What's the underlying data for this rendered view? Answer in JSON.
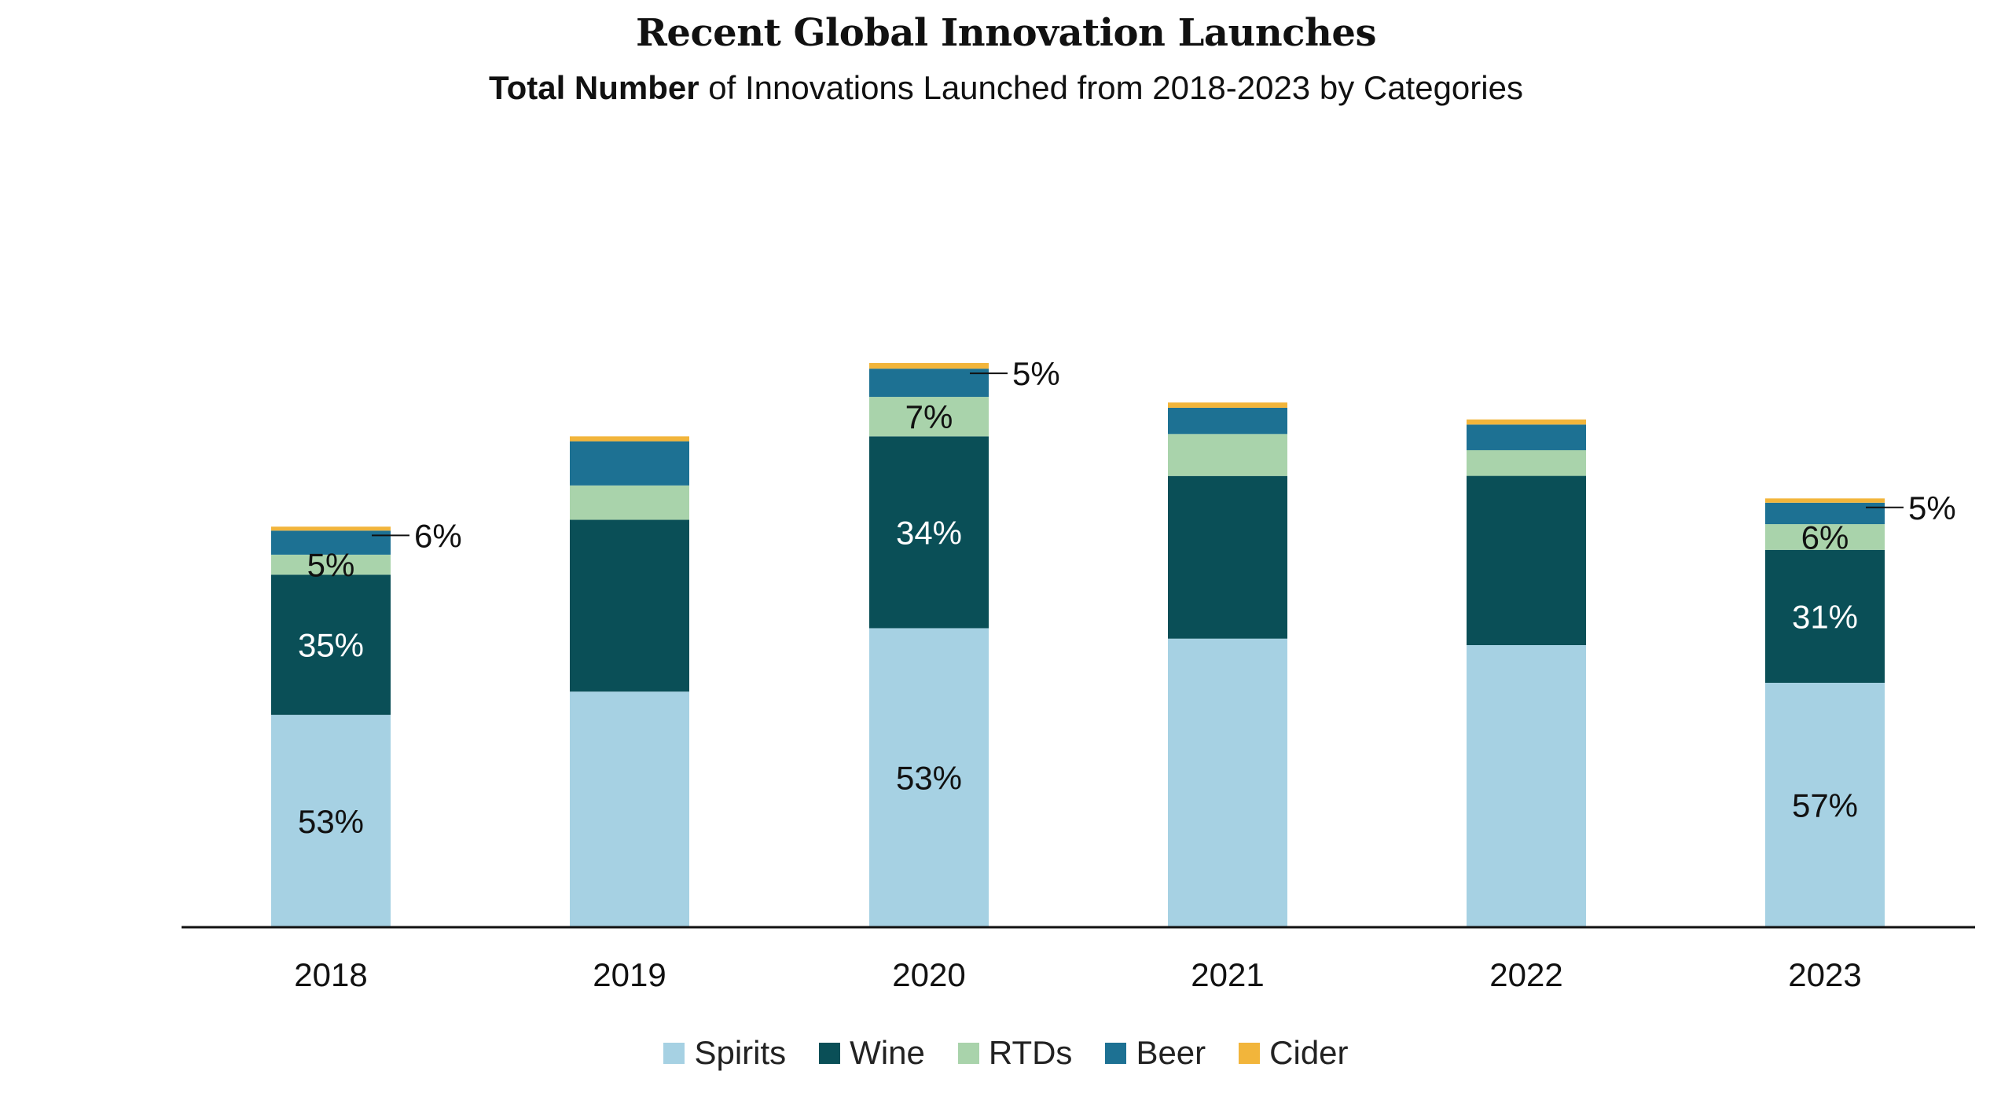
{
  "colors": {
    "Spirits": "#a6d1e3",
    "Wine": "#0a4f57",
    "RTDs": "#a9d3ab",
    "Beer": "#1d7193",
    "Cider": "#f2b53b",
    "axis": "#111111"
  },
  "chart_data": {
    "type": "bar",
    "stacked": true,
    "title": "Recent Global Innovation Launches",
    "subtitle_bold": "Total Number",
    "subtitle_rest": " of Innovations Launched from 2018-2023 by Categories",
    "xlabel": "",
    "ylabel": "",
    "y_axis_shown": false,
    "grid": false,
    "legend_position": "bottom",
    "categories": [
      "2018",
      "2019",
      "2020",
      "2021",
      "2022",
      "2023"
    ],
    "totals_index_2020_eq_100": [
      71,
      87,
      100,
      93,
      90,
      76
    ],
    "series": [
      {
        "name": "Spirits",
        "share_pct": [
          53,
          48,
          53,
          55,
          55,
          57
        ]
      },
      {
        "name": "Wine",
        "share_pct": [
          35,
          35,
          34,
          31,
          33,
          31
        ]
      },
      {
        "name": "RTDs",
        "share_pct": [
          5,
          7,
          7,
          8,
          5,
          6
        ]
      },
      {
        "name": "Beer",
        "share_pct": [
          6,
          9,
          5,
          5,
          5,
          5
        ]
      },
      {
        "name": "Cider",
        "share_pct": [
          1,
          1,
          1,
          1,
          1,
          1
        ]
      }
    ],
    "data_labels": [
      {
        "category": "2018",
        "series": "Spirits",
        "text": "53%"
      },
      {
        "category": "2018",
        "series": "Wine",
        "text": "35%"
      },
      {
        "category": "2018",
        "series": "RTDs",
        "text": "5%"
      },
      {
        "category": "2018",
        "series": "Beer",
        "text": "6%",
        "leader": true
      },
      {
        "category": "2020",
        "series": "Spirits",
        "text": "53%"
      },
      {
        "category": "2020",
        "series": "Wine",
        "text": "34%"
      },
      {
        "category": "2020",
        "series": "RTDs",
        "text": "7%"
      },
      {
        "category": "2020",
        "series": "Beer",
        "text": "5%",
        "leader": true
      },
      {
        "category": "2023",
        "series": "Spirits",
        "text": "57%"
      },
      {
        "category": "2023",
        "series": "Wine",
        "text": "31%"
      },
      {
        "category": "2023",
        "series": "RTDs",
        "text": "6%"
      },
      {
        "category": "2023",
        "series": "Beer",
        "text": "5%",
        "leader": true
      }
    ]
  },
  "legend": [
    {
      "label": "Spirits",
      "key": "Spirits"
    },
    {
      "label": "Wine",
      "key": "Wine"
    },
    {
      "label": "RTDs",
      "key": "RTDs"
    },
    {
      "label": "Beer",
      "key": "Beer"
    },
    {
      "label": "Cider",
      "key": "Cider"
    }
  ]
}
